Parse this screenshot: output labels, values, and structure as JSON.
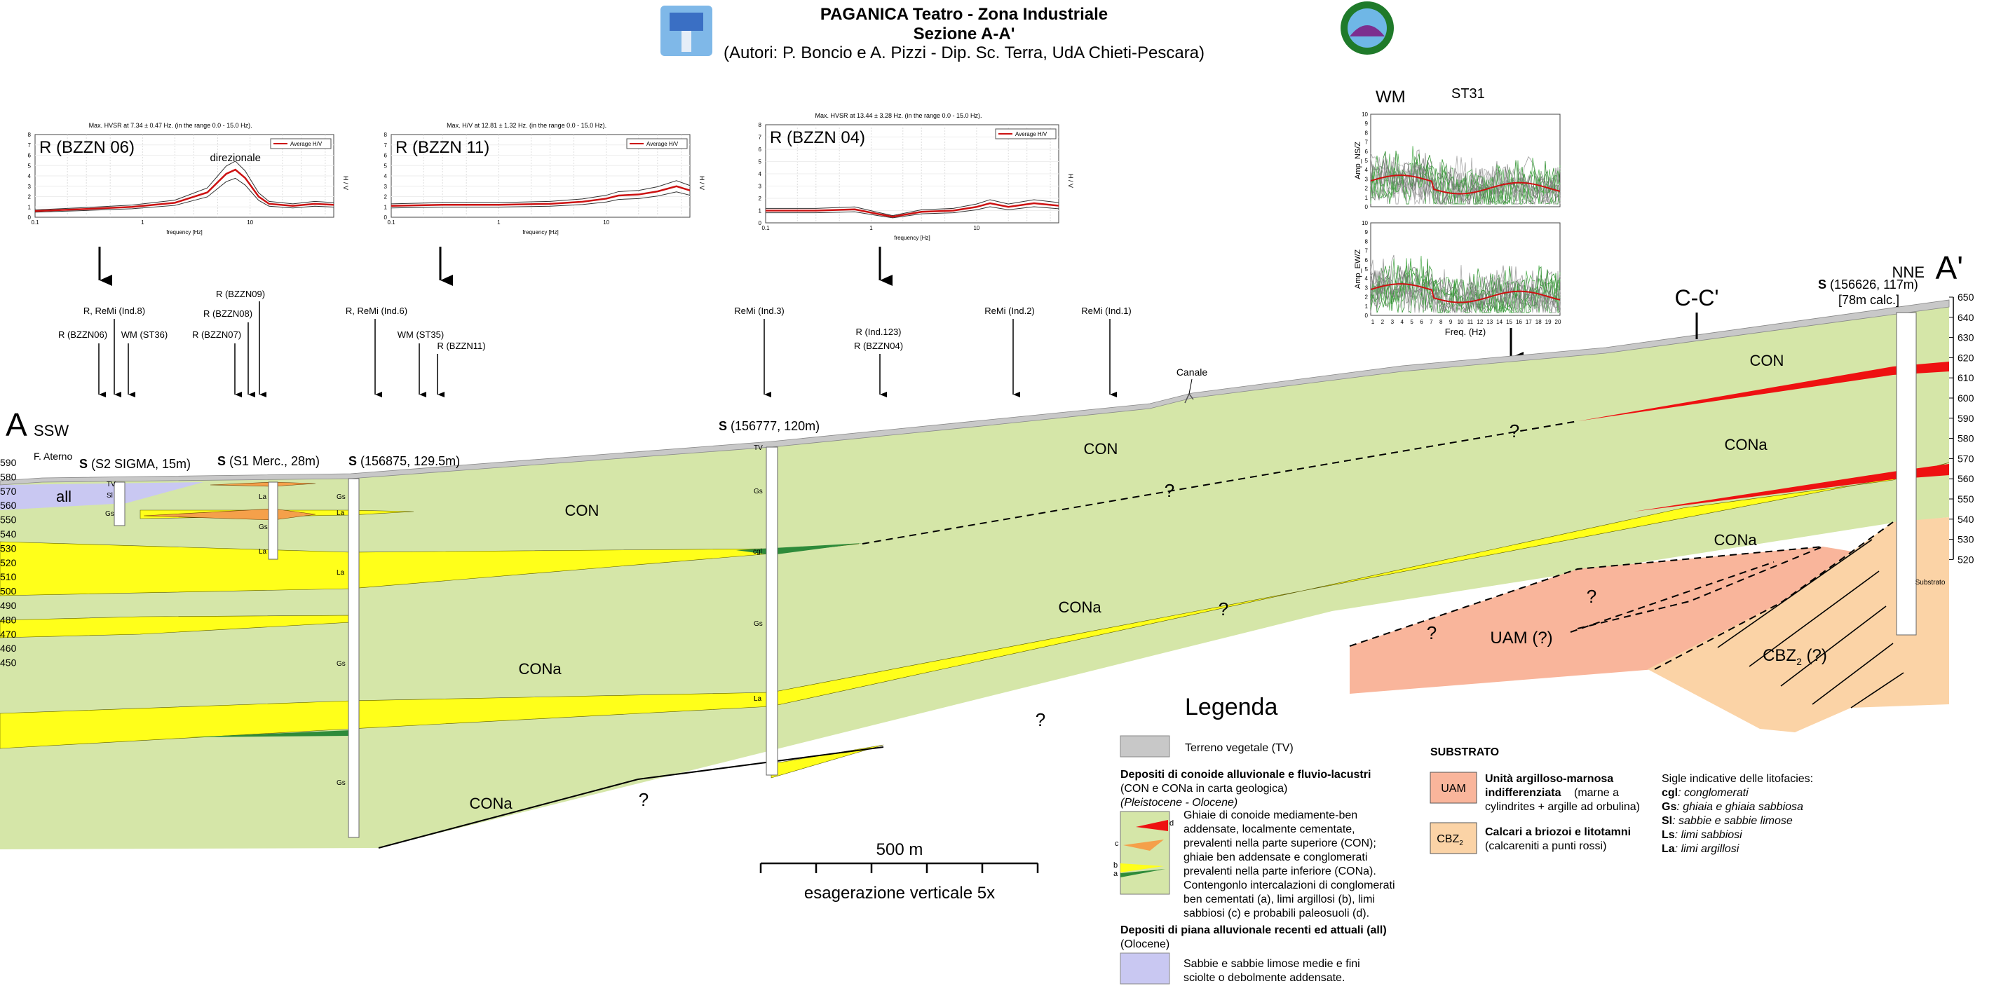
{
  "header": {
    "title": "PAGANICA Teatro - Zona Industriale",
    "subtitle": "Sezione A-A'",
    "authors": "(Autori: P. Boncio e A. Pizzi - Dip. Sc. Terra, UdA Chieti-Pescara)"
  },
  "section": {
    "end_left": "A",
    "end_left_dir": "SSW",
    "end_right": "A'",
    "end_right_dir": "NNE",
    "cross_label": "C-C'",
    "canale": "Canale",
    "aterno": "F. Aterno",
    "elevations": [
      "650",
      "640",
      "630",
      "620",
      "610",
      "600",
      "590",
      "580",
      "570",
      "560",
      "550",
      "540",
      "530",
      "520"
    ],
    "elevations_left": [
      "590",
      "580",
      "570",
      "560",
      "550",
      "540",
      "530",
      "520",
      "510",
      "500",
      "490",
      "480",
      "470",
      "460",
      "450"
    ]
  },
  "boreholes": [
    {
      "bold": "S",
      "rest": " (S2 SIGMA, 15m)"
    },
    {
      "bold": "S",
      "rest": " (S1 Merc., 28m)"
    },
    {
      "bold": "S",
      "rest": " (156875, 129.5m)"
    },
    {
      "bold": "S",
      "rest": " (156777, 120m)"
    },
    {
      "bold": "S",
      "rest": " (156626, 117m)",
      "line2": "[78m calc.]"
    }
  ],
  "surveys": {
    "g1": [
      "R, ReMi (Ind.8)",
      "R (BZZN06)",
      "WM (ST36)"
    ],
    "g2": [
      "R (BZZN09)",
      "R (BZZN08)",
      "R (BZZN07)"
    ],
    "g3": [
      "R, ReMi (Ind.6)",
      "WM (ST35)",
      "R (BZZN11)"
    ],
    "g4": [
      "ReMi (Ind.3)"
    ],
    "g5": [
      "R (Ind.123)",
      "R (BZZN04)"
    ],
    "g6": [
      "ReMi (Ind.2)"
    ],
    "g7": [
      "ReMi (Ind.1)"
    ]
  },
  "units": {
    "all": "all",
    "con": "CON",
    "cona": "CONa",
    "uam": "UAM (?)",
    "cbz": "CBZ",
    "cbz_sub": "2",
    "cbz_q": " (?)",
    "q": "?",
    "substrato": "Substrato"
  },
  "litho_tags": [
    "Gs",
    "La",
    "Gs",
    "La",
    "Gs",
    "La",
    "Gs",
    "La",
    "Gs",
    "cgl",
    "Gs",
    "Sl",
    "TV",
    "La",
    "Gs",
    "TV"
  ],
  "hvsr_plots": [
    {
      "name": "R (BZZN 06)",
      "header": "Max. HVSR at 7.34 ± 0.47 Hz. (in the range 0.0 - 15.0 Hz).",
      "legend": "Average H/V",
      "note": "direzionale",
      "xlabel": "frequency [Hz]",
      "curve": [
        [
          0.1,
          0.6
        ],
        [
          0.3,
          0.8
        ],
        [
          0.8,
          1.0
        ],
        [
          2,
          1.4
        ],
        [
          4,
          2.4
        ],
        [
          6,
          4.2
        ],
        [
          7.3,
          4.6
        ],
        [
          9,
          3.8
        ],
        [
          12,
          2.0
        ],
        [
          15,
          1.3
        ],
        [
          25,
          1.1
        ],
        [
          40,
          1.3
        ],
        [
          60,
          1.2
        ]
      ]
    },
    {
      "name": "R (BZZN 11)",
      "header": "Max. H/V at 12.81 ± 1.32 Hz. (in the range 0.0 - 15.0 Hz).",
      "legend": "Average H/V",
      "xlabel": "frequency [Hz]",
      "curve": [
        [
          0.1,
          1.1
        ],
        [
          0.3,
          1.2
        ],
        [
          1,
          1.2
        ],
        [
          3,
          1.3
        ],
        [
          6,
          1.5
        ],
        [
          10,
          1.8
        ],
        [
          13,
          2.1
        ],
        [
          20,
          2.2
        ],
        [
          30,
          2.5
        ],
        [
          45,
          3.0
        ],
        [
          60,
          2.6
        ]
      ]
    },
    {
      "name": "R (BZZN 04)",
      "header": "Max. HVSR at 13.44 ± 3.28 Hz. (in the range 0.0 - 15.0 Hz).",
      "legend": "Average H/V",
      "xlabel": "frequency [Hz]",
      "curve": [
        [
          0.1,
          1.0
        ],
        [
          0.3,
          1.0
        ],
        [
          0.7,
          1.1
        ],
        [
          1.2,
          0.7
        ],
        [
          1.6,
          0.5
        ],
        [
          3,
          0.9
        ],
        [
          6,
          1.0
        ],
        [
          10,
          1.3
        ],
        [
          13.4,
          1.6
        ],
        [
          20,
          1.3
        ],
        [
          35,
          1.6
        ],
        [
          60,
          1.4
        ]
      ]
    }
  ],
  "wm_plot": {
    "title": "WM",
    "station": "ST31",
    "ylabel_top": "Amp_NS/Z",
    "ylabel_bot": "Amp_EW/Z",
    "xlabel": "Freq. (Hz)",
    "yticks": [
      "10",
      "9",
      "8",
      "7",
      "6",
      "5",
      "4",
      "3",
      "2",
      "1",
      "0"
    ],
    "xticks": [
      "1",
      "2",
      "3",
      "4",
      "5",
      "6",
      "7",
      "8",
      "9",
      "10",
      "11",
      "12",
      "13",
      "14",
      "15",
      "16",
      "17",
      "18",
      "19",
      "20"
    ]
  },
  "legend": {
    "title": "Legenda",
    "tv": "Terreno vegetale (TV)",
    "dep_title": "Depositi di conoide alluvionale e fluvio-lacustri",
    "dep_sub": "(CON e CONa in carta geologica)",
    "dep_age": "(Pleistocene - Olocene)",
    "dep_desc": [
      "Ghiaie di conoide mediamente-ben",
      "addensate, localmente cementate,",
      "prevalenti nella parte superiore (CON);",
      "ghiaie ben addensate e conglomerati",
      "prevalenti nella parte inferiore (CONa).",
      "Contengonlo intercalazioni di conglomerati",
      "ben cementati (a), limi argillosi (b), limi",
      "sabbiosi (c) e probabili paleosuoli (d)."
    ],
    "all_title": "Depositi di piana alluvionale recenti ed attuali (all)",
    "all_age": "(Olocene)",
    "all_desc": [
      "Sabbie e sabbie limose medie e fini",
      "sciolte o debolmente addensate."
    ],
    "substrato": "SUBSTRATO",
    "uam_code": "UAM",
    "uam_title": [
      "Unità argilloso-marnosa",
      "indifferenziata"
    ],
    "uam_desc": [
      "(marne a",
      "cylindrites + argille ad orbulina)"
    ],
    "cbz_code": "CBZ",
    "cbz_title": "Calcari a briozoi e litotamni",
    "cbz_desc": "(calcareniti a punti rossi)",
    "sigle_title": "Sigle indicative delle litofacies:",
    "sigle": [
      [
        "cgl",
        ": conglomerati"
      ],
      [
        "Gs",
        ": ghiaia e ghiaia sabbiosa"
      ],
      [
        "Sl",
        ": sabbie e sabbie limose"
      ],
      [
        "Ls",
        ": limi sabbiosi"
      ],
      [
        "La",
        ": limi argillosi"
      ]
    ],
    "abcd": [
      "a",
      "b",
      "c",
      "d"
    ]
  },
  "scale": {
    "label": "500 m",
    "exag": "esagerazione verticale 5x"
  },
  "colors": {
    "con": "#d5e6a8",
    "yellow": "#ffff1a",
    "green": "#2e8b3a",
    "orange": "#f5a04a",
    "red": "#ee1111",
    "uam": "#f9b59b",
    "cbz": "#fbd3a6",
    "all": "#c9c8f2",
    "tv": "#c8c8c8"
  }
}
